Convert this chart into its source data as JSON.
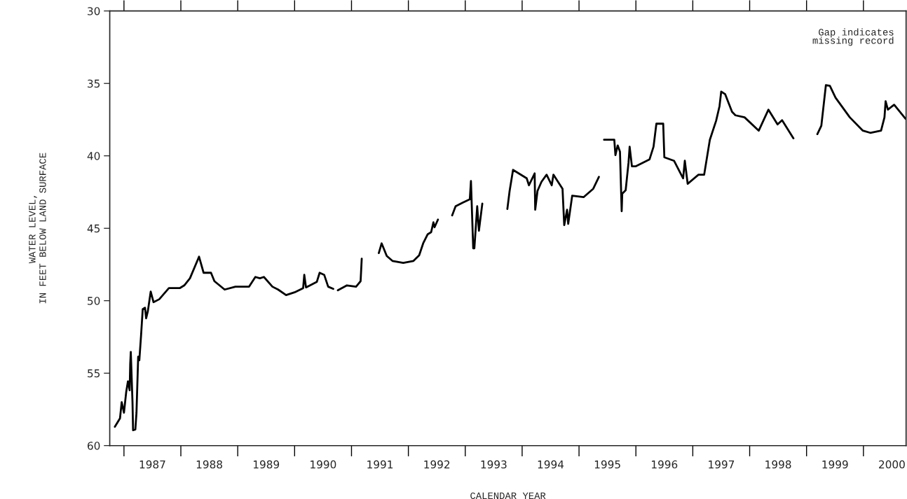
{
  "chart_data": {
    "type": "line",
    "xlabel": "CALENDAR YEAR",
    "ylabel": "WATER LEVEL,\nIN FEET BELOW LAND SURFACE",
    "annotations": [
      "Gap indicates\nmissing record"
    ],
    "xlim": [
      1986.75,
      2000.75
    ],
    "ylim": [
      60,
      30
    ],
    "yticks": [
      30,
      35,
      40,
      45,
      50,
      55,
      60
    ],
    "xticks": [
      {
        "value": 1987,
        "label": null
      },
      {
        "value": 1987.5,
        "label": "1987"
      },
      {
        "value": 1988,
        "label": null
      },
      {
        "value": 1988.5,
        "label": "1988"
      },
      {
        "value": 1989,
        "label": null
      },
      {
        "value": 1989.5,
        "label": "1989"
      },
      {
        "value": 1990,
        "label": null
      },
      {
        "value": 1990.5,
        "label": "1990"
      },
      {
        "value": 1991,
        "label": null
      },
      {
        "value": 1991.5,
        "label": "1991"
      },
      {
        "value": 1992,
        "label": null
      },
      {
        "value": 1992.5,
        "label": "1992"
      },
      {
        "value": 1993,
        "label": null
      },
      {
        "value": 1993.5,
        "label": "1993"
      },
      {
        "value": 1994,
        "label": null
      },
      {
        "value": 1994.5,
        "label": "1994"
      },
      {
        "value": 1995,
        "label": null
      },
      {
        "value": 1995.5,
        "label": "1995"
      },
      {
        "value": 1996,
        "label": null
      },
      {
        "value": 1996.5,
        "label": "1996"
      },
      {
        "value": 1997,
        "label": null
      },
      {
        "value": 1997.5,
        "label": "1997"
      },
      {
        "value": 1998,
        "label": null
      },
      {
        "value": 1998.5,
        "label": "1998"
      },
      {
        "value": 1999,
        "label": null
      },
      {
        "value": 1999.5,
        "label": "1999"
      },
      {
        "value": 2000,
        "label": null
      },
      {
        "value": 2000.5,
        "label": "2000"
      }
    ],
    "grid": false,
    "legend": false,
    "marker": "none",
    "line_style": "solid",
    "series": [
      {
        "color": "#000000",
        "x": [
          1986.84,
          1986.93,
          1986.96,
          1987.0,
          1987.04,
          1987.07,
          1987.1,
          1987.11,
          1987.12,
          1987.15,
          1987.16,
          1987.2,
          1987.22,
          1987.25,
          1987.27,
          1987.3,
          1987.33,
          1987.37,
          1987.39,
          1987.42,
          1987.47,
          1987.52,
          1987.62,
          1987.79,
          1987.98,
          1988.06,
          1988.16,
          1988.32,
          1988.4,
          1988.53,
          1988.59,
          1988.77,
          1988.96,
          1989.2,
          1989.31,
          1989.39,
          1989.46,
          1989.61,
          1989.71,
          1989.85,
          1990.0,
          1990.15,
          1990.17,
          1990.2,
          1990.39,
          1990.44,
          1990.52,
          1990.59,
          1990.68,
          1990.71,
          1990.76,
          1990.92,
          1991.08,
          1991.16,
          1991.18,
          1991.3,
          1991.48,
          1991.53,
          1991.62,
          1991.72,
          1991.91,
          1992.09,
          1992.19,
          1992.26,
          1992.34,
          1992.4,
          1992.44,
          1992.46,
          1992.52,
          1992.6,
          1992.77,
          1992.83,
          1992.95,
          1993.08,
          1993.1,
          1993.14,
          1993.16,
          1993.21,
          1993.24,
          1993.3,
          1993.5,
          1993.74,
          1993.78,
          1993.84,
          1994.08,
          1994.12,
          1994.22,
          1994.23,
          1994.27,
          1994.34,
          1994.43,
          1994.52,
          1994.55,
          1994.71,
          1994.74,
          1994.79,
          1994.81,
          1994.88,
          1995.08,
          1995.25,
          1995.35,
          1995.38,
          1995.44,
          1995.62,
          1995.64,
          1995.68,
          1995.72,
          1995.75,
          1995.76,
          1995.82,
          1995.87,
          1995.89,
          1995.93,
          1996.0,
          1996.24,
          1996.31,
          1996.36,
          1996.48,
          1996.5,
          1996.67,
          1996.83,
          1996.86,
          1996.91,
          1997.1,
          1997.2,
          1997.3,
          1997.41,
          1997.47,
          1997.5,
          1997.57,
          1997.69,
          1997.75,
          1997.91,
          1998.16,
          1998.33,
          1998.49,
          1998.57,
          1998.77,
          1998.95,
          1999.19,
          1999.26,
          1999.34,
          1999.41,
          1999.51,
          1999.76,
          1999.99,
          2000.12,
          2000.31,
          2000.37,
          2000.39,
          2000.43,
          2000.54,
          2000.74
        ],
        "values": [
          58.7,
          58.12,
          57.0,
          57.73,
          56.28,
          55.56,
          56.18,
          54.35,
          53.53,
          57.0,
          58.94,
          58.89,
          57.73,
          53.86,
          54.11,
          52.42,
          50.58,
          50.48,
          51.21,
          50.72,
          49.37,
          50.1,
          49.9,
          49.13,
          49.13,
          48.94,
          48.45,
          46.96,
          48.07,
          48.07,
          48.65,
          49.23,
          49.03,
          49.03,
          48.36,
          48.45,
          48.36,
          49.03,
          49.23,
          49.61,
          49.42,
          49.13,
          48.21,
          49.08,
          48.7,
          48.07,
          48.21,
          49.03,
          49.18,
          null,
          49.28,
          48.94,
          49.03,
          48.65,
          47.1,
          null,
          46.71,
          46.04,
          46.91,
          47.25,
          47.39,
          47.25,
          46.86,
          46.04,
          45.41,
          45.27,
          44.59,
          44.93,
          44.4,
          null,
          44.11,
          43.48,
          43.24,
          43.0,
          41.74,
          46.38,
          46.38,
          43.48,
          45.17,
          43.29,
          null,
          43.67,
          42.42,
          40.97,
          41.55,
          42.03,
          41.21,
          43.72,
          42.42,
          41.79,
          41.3,
          42.03,
          41.3,
          42.27,
          44.78,
          43.72,
          44.69,
          42.75,
          42.85,
          42.27,
          41.45,
          null,
          38.89,
          38.89,
          39.95,
          39.28,
          39.71,
          43.82,
          42.61,
          42.37,
          40.48,
          39.37,
          40.72,
          40.72,
          40.24,
          39.37,
          37.78,
          37.78,
          40.1,
          40.34,
          41.55,
          40.34,
          41.93,
          41.3,
          41.3,
          38.89,
          37.58,
          36.57,
          35.56,
          35.75,
          36.96,
          37.2,
          37.34,
          38.26,
          36.81,
          37.83,
          37.54,
          38.79,
          null,
          38.5,
          37.92,
          35.12,
          35.17,
          35.99,
          37.34,
          38.26,
          38.41,
          38.26,
          37.34,
          36.23,
          36.81,
          36.47,
          37.44
        ]
      }
    ]
  }
}
